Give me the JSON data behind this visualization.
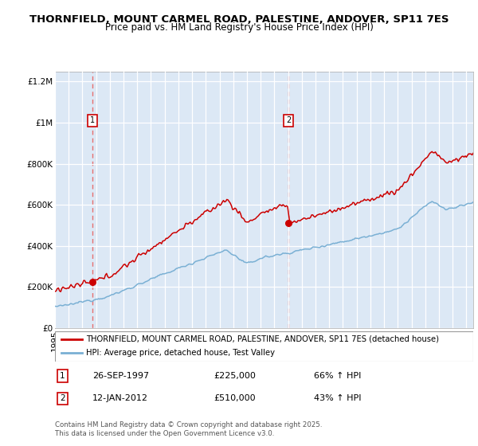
{
  "title": "THORNFIELD, MOUNT CARMEL ROAD, PALESTINE, ANDOVER, SP11 7ES",
  "subtitle": "Price paid vs. HM Land Registry's House Price Index (HPI)",
  "red_label": "THORNFIELD, MOUNT CARMEL ROAD, PALESTINE, ANDOVER, SP11 7ES (detached house)",
  "blue_label": "HPI: Average price, detached house, Test Valley",
  "footnote": "Contains HM Land Registry data © Crown copyright and database right 2025.\nThis data is licensed under the Open Government Licence v3.0.",
  "sale1_date": "26-SEP-1997",
  "sale1_price": 225000,
  "sale1_label": "66% ↑ HPI",
  "sale2_date": "12-JAN-2012",
  "sale2_price": 510000,
  "sale2_label": "43% ↑ HPI",
  "sale1_year": 1997.73,
  "sale2_year": 2012.04,
  "ylim_max": 1250000,
  "ylim_min": 0,
  "xlim_min": 1995.0,
  "xlim_max": 2025.5,
  "red_color": "#cc0000",
  "blue_color": "#7ab0d4",
  "dashed_color": "#e87070",
  "bg_color": "#ffffff",
  "grid_color": "#c8d8e8",
  "shade_color": "#dce8f5",
  "title_fontsize": 9.5,
  "subtitle_fontsize": 8.5,
  "tick_fontsize": 7.5
}
